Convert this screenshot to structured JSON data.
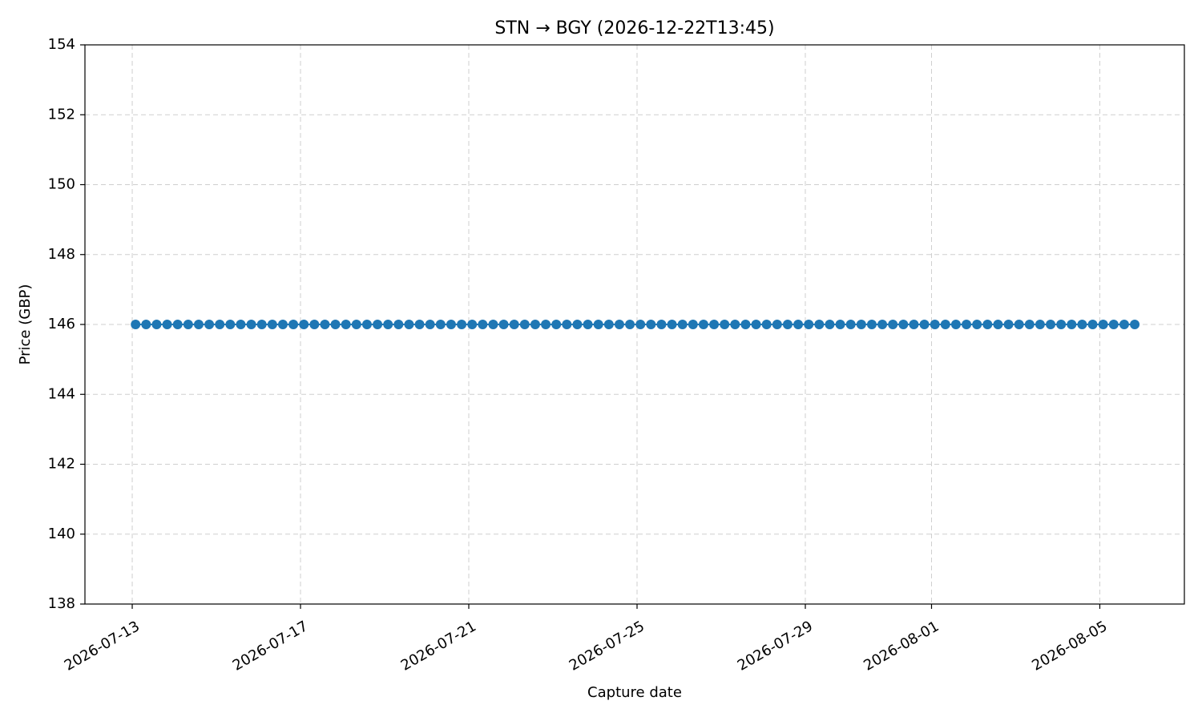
{
  "chart_data": {
    "type": "line",
    "marker": true,
    "title": "STN → BGY (2026-12-22T13:45)",
    "x_label": "Capture date",
    "y_label": "Price (GBP)",
    "x": [
      20647.08,
      20647.33,
      20647.58,
      20647.83,
      20648.08,
      20648.33,
      20648.58,
      20648.83,
      20649.08,
      20649.33,
      20649.58,
      20649.83,
      20650.08,
      20650.33,
      20650.58,
      20650.83,
      20651.08,
      20651.33,
      20651.58,
      20651.83,
      20652.08,
      20652.33,
      20652.58,
      20652.83,
      20653.08,
      20653.33,
      20653.58,
      20653.83,
      20654.08,
      20654.33,
      20654.58,
      20654.83,
      20655.08,
      20655.33,
      20655.58,
      20655.83,
      20656.08,
      20656.33,
      20656.58,
      20656.83,
      20657.08,
      20657.33,
      20657.58,
      20657.83,
      20658.08,
      20658.33,
      20658.58,
      20658.83,
      20659.08,
      20659.33,
      20659.58,
      20659.83,
      20660.08,
      20660.33,
      20660.58,
      20660.83,
      20661.08,
      20661.33,
      20661.58,
      20661.83,
      20662.08,
      20662.33,
      20662.58,
      20662.83,
      20663.08,
      20663.33,
      20663.58,
      20663.83,
      20664.08,
      20664.33,
      20664.58,
      20664.83,
      20665.08,
      20665.33,
      20665.58,
      20665.83,
      20666.08,
      20666.33,
      20666.58,
      20666.83,
      20667.08,
      20667.33,
      20667.58,
      20667.83,
      20668.08,
      20668.33,
      20668.58,
      20668.83,
      20669.08,
      20669.33,
      20669.58,
      20669.83,
      20670.08,
      20670.33,
      20670.58,
      20670.83
    ],
    "series": [
      {
        "color": "#1f77b4",
        "values": [
          146,
          146,
          146,
          146,
          146,
          146,
          146,
          146,
          146,
          146,
          146,
          146,
          146,
          146,
          146,
          146,
          146,
          146,
          146,
          146,
          146,
          146,
          146,
          146,
          146,
          146,
          146,
          146,
          146,
          146,
          146,
          146,
          146,
          146,
          146,
          146,
          146,
          146,
          146,
          146,
          146,
          146,
          146,
          146,
          146,
          146,
          146,
          146,
          146,
          146,
          146,
          146,
          146,
          146,
          146,
          146,
          146,
          146,
          146,
          146,
          146,
          146,
          146,
          146,
          146,
          146,
          146,
          146,
          146,
          146,
          146,
          146,
          146,
          146,
          146,
          146,
          146,
          146,
          146,
          146,
          146,
          146,
          146,
          146,
          146,
          146,
          146,
          146,
          146,
          146,
          146,
          146,
          146,
          146,
          146,
          146
        ]
      }
    ],
    "xlim": [
      20645.876,
      20672.01
    ],
    "xticks": [
      {
        "value": 20647,
        "label": "2026-07-13"
      },
      {
        "value": 20651,
        "label": "2026-07-17"
      },
      {
        "value": 20655,
        "label": "2026-07-21"
      },
      {
        "value": 20659,
        "label": "2026-07-25"
      },
      {
        "value": 20663,
        "label": "2026-07-29"
      },
      {
        "value": 20666,
        "label": "2026-08-01"
      },
      {
        "value": 20670,
        "label": "2026-08-05"
      }
    ],
    "ylim": [
      138,
      154
    ],
    "yticks": [
      138,
      140,
      142,
      144,
      146,
      148,
      150,
      152,
      154
    ],
    "grid": true
  }
}
